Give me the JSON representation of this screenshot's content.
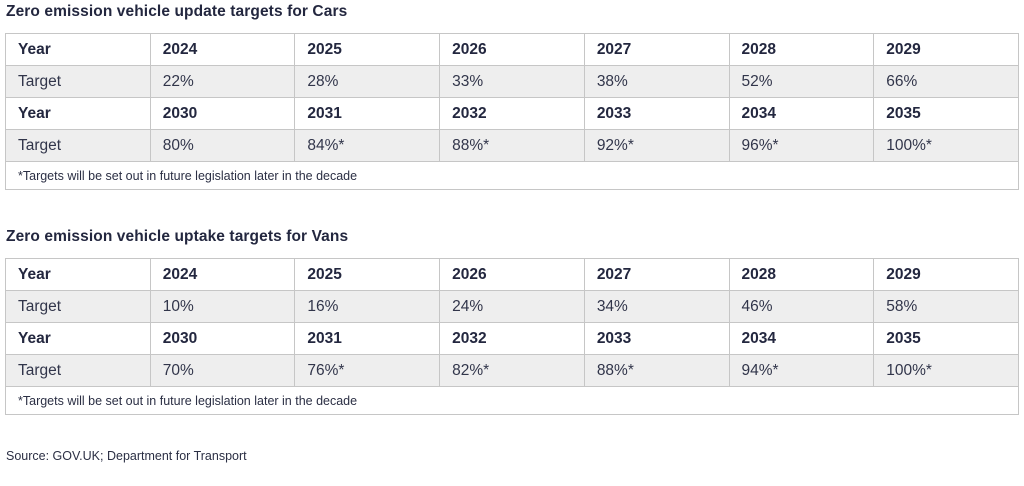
{
  "colors": {
    "text": "#31354a",
    "header_text": "#23273f",
    "row_shade": "#eeeeee",
    "border": "#c6c6c6",
    "background": "#ffffff"
  },
  "chart_data": [
    {
      "type": "table",
      "title": "Zero emission vehicle update targets for Cars",
      "rows": [
        {
          "header": "Year",
          "bold": true,
          "values": [
            "2024",
            "2025",
            "2026",
            "2027",
            "2028",
            "2029"
          ]
        },
        {
          "header": "Target",
          "bold": false,
          "values": [
            "22%",
            "28%",
            "33%",
            "38%",
            "52%",
            "66%"
          ]
        },
        {
          "header": "Year",
          "bold": true,
          "values": [
            "2030",
            "2031",
            "2032",
            "2033",
            "2034",
            "2035"
          ]
        },
        {
          "header": "Target",
          "bold": false,
          "values": [
            "80%",
            "84%*",
            "88%*",
            "92%*",
            "96%*",
            "100%*"
          ]
        }
      ],
      "footnote": "*Targets will be set out in future legislation later in the decade"
    },
    {
      "type": "table",
      "title": "Zero emission vehicle uptake targets for Vans",
      "rows": [
        {
          "header": "Year",
          "bold": true,
          "values": [
            "2024",
            "2025",
            "2026",
            "2027",
            "2028",
            "2029"
          ]
        },
        {
          "header": "Target",
          "bold": false,
          "values": [
            "10%",
            "16%",
            "24%",
            "34%",
            "46%",
            "58%"
          ]
        },
        {
          "header": "Year",
          "bold": true,
          "values": [
            "2030",
            "2031",
            "2032",
            "2033",
            "2034",
            "2035"
          ]
        },
        {
          "header": "Target",
          "bold": false,
          "values": [
            "70%",
            "76%*",
            "82%*",
            "88%*",
            "94%*",
            "100%*"
          ]
        }
      ],
      "footnote": "*Targets will be set out in future legislation later in the decade"
    }
  ],
  "source": "Source: GOV.UK; Department for Transport"
}
